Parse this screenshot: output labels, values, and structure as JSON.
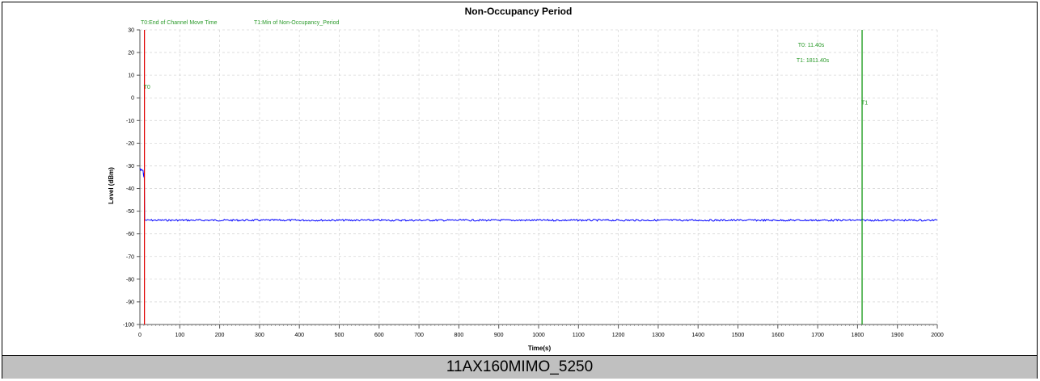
{
  "chart_data": {
    "type": "line",
    "title": "Non-Occupancy Period",
    "xlabel": "Time(s)",
    "ylabel": "Level (dBm)",
    "xlim": [
      0,
      2000
    ],
    "ylim": [
      -100,
      30
    ],
    "xticks": [
      0,
      100,
      200,
      300,
      400,
      500,
      600,
      700,
      800,
      900,
      1000,
      1100,
      1200,
      1300,
      1400,
      1500,
      1600,
      1700,
      1800,
      1900,
      2000
    ],
    "yticks": [
      30,
      20,
      10,
      0,
      -10,
      -20,
      -30,
      -40,
      -50,
      -60,
      -70,
      -80,
      -90,
      -100
    ],
    "grid": true,
    "colors": {
      "trace": "#0000ff",
      "t0_marker": "#e00000",
      "t1_marker": "#009000",
      "annotation": "#2a9a2a",
      "grid": "#d8d8d8"
    },
    "series": [
      {
        "color": "#0000ff",
        "x": [
          0,
          2,
          4,
          6,
          8,
          9,
          10,
          11,
          12,
          2000
        ],
        "y": [
          -31,
          -32,
          -31.5,
          -32,
          -32,
          -34,
          -35,
          -33,
          -54,
          -54
        ]
      }
    ],
    "markers": [
      {
        "label": "T0",
        "x": 11.4,
        "color": "#e00000",
        "label_y": 4
      },
      {
        "label": "T1",
        "x": 1811.4,
        "color": "#009000",
        "label_y": -3
      }
    ],
    "legend": [
      "T0:End of Channel Move Time",
      "T1:Min of Non-Occupancy_Period"
    ],
    "legend_placement": "top-left",
    "annotations": [
      "T0: 11.40s",
      "T1: 1811.40s"
    ],
    "annotation_placement": "top-right"
  },
  "caption": "11AX160MIMO_5250"
}
